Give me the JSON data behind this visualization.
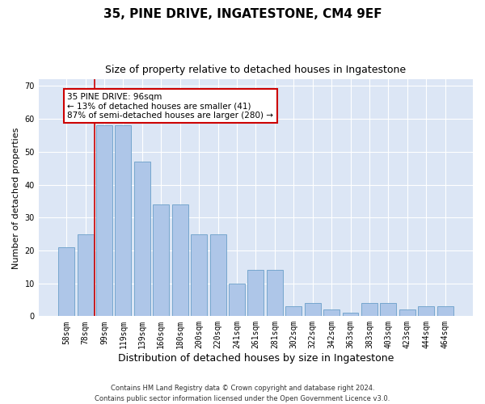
{
  "title1": "35, PINE DRIVE, INGATESTONE, CM4 9EF",
  "title2": "Size of property relative to detached houses in Ingatestone",
  "xlabel": "Distribution of detached houses by size in Ingatestone",
  "ylabel": "Number of detached properties",
  "categories": [
    "58sqm",
    "78sqm",
    "99sqm",
    "119sqm",
    "139sqm",
    "160sqm",
    "180sqm",
    "200sqm",
    "220sqm",
    "241sqm",
    "261sqm",
    "281sqm",
    "302sqm",
    "322sqm",
    "342sqm",
    "363sqm",
    "383sqm",
    "403sqm",
    "423sqm",
    "444sqm",
    "464sqm"
  ],
  "values": [
    21,
    25,
    58,
    58,
    47,
    34,
    34,
    25,
    25,
    10,
    14,
    14,
    3,
    4,
    2,
    1,
    4,
    4,
    2,
    3,
    3
  ],
  "bar_color": "#aec6e8",
  "bar_edge_color": "#6a9fc8",
  "background_color": "#dce6f5",
  "annotation_box_text": "35 PINE DRIVE: 96sqm\n← 13% of detached houses are smaller (41)\n87% of semi-detached houses are larger (280) →",
  "annotation_box_color": "#ffffff",
  "annotation_box_edge_color": "#cc0000",
  "redline_x": 1.5,
  "ylim": [
    0,
    72
  ],
  "yticks": [
    0,
    10,
    20,
    30,
    40,
    50,
    60,
    70
  ],
  "footnote": "Contains HM Land Registry data © Crown copyright and database right 2024.\nContains public sector information licensed under the Open Government Licence v3.0.",
  "title1_fontsize": 11,
  "title2_fontsize": 9,
  "xlabel_fontsize": 9,
  "ylabel_fontsize": 8,
  "tick_fontsize": 7,
  "annotation_fontsize": 7.5,
  "footnote_fontsize": 6
}
